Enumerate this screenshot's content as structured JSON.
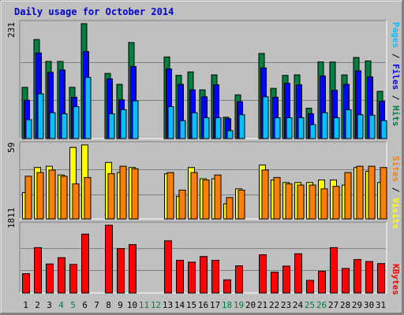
{
  "title": "Daily usage for October 2014",
  "colors": {
    "hits": "#008040",
    "files": "#0000FF",
    "pages": "#00C0FF",
    "visits": "#FFFF00",
    "sites": "#FF8000",
    "kbytes": "#FF0000",
    "weekend_label": "#008040",
    "weekday_label": "#000000"
  },
  "legend": {
    "pages": "Pages",
    "files": "Files",
    "hits": "Hits",
    "sites": "Sites",
    "visits": "Visits",
    "kbytes": "KBytes",
    "sep": " / "
  },
  "chart_data": [
    {
      "type": "bar",
      "ylabel": "231",
      "ylim": [
        0,
        231
      ],
      "categories": [
        "1",
        "2",
        "3",
        "4",
        "5",
        "6",
        "7",
        "8",
        "9",
        "10",
        "11",
        "12",
        "13",
        "14",
        "15",
        "16",
        "17",
        "18",
        "19",
        "20",
        "21",
        "22",
        "23",
        "24",
        "25",
        "26",
        "27",
        "28",
        "29",
        "30",
        "31"
      ],
      "weekend_days": [
        "4",
        "5",
        "11",
        "12",
        "18",
        "19",
        "25",
        "26"
      ],
      "series": [
        {
          "name": "Hits",
          "values": [
            103,
            199,
            155,
            155,
            103,
            231,
            0,
            131,
            109,
            193,
            0,
            0,
            164,
            127,
            134,
            98,
            128,
            43,
            88,
            0,
            171,
            101,
            127,
            128,
            61,
            154,
            154,
            128,
            163,
            156,
            95
          ]
        },
        {
          "name": "Files",
          "values": [
            77,
            172,
            133,
            138,
            83,
            175,
            0,
            120,
            78,
            145,
            0,
            0,
            140,
            109,
            98,
            84,
            108,
            40,
            74,
            0,
            142,
            83,
            111,
            108,
            50,
            126,
            97,
            109,
            136,
            124,
            75
          ]
        },
        {
          "name": "Pages",
          "values": [
            38,
            90,
            52,
            50,
            64,
            123,
            0,
            50,
            58,
            76,
            0,
            0,
            64,
            36,
            52,
            42,
            42,
            16,
            48,
            0,
            84,
            42,
            42,
            42,
            28,
            52,
            42,
            58,
            48,
            47,
            36
          ]
        }
      ]
    },
    {
      "type": "bar",
      "ylabel": "59",
      "ylim": [
        0,
        59
      ],
      "categories": [
        "1",
        "2",
        "3",
        "4",
        "5",
        "6",
        "7",
        "8",
        "9",
        "10",
        "11",
        "12",
        "13",
        "14",
        "15",
        "16",
        "17",
        "18",
        "19",
        "20",
        "21",
        "22",
        "23",
        "24",
        "25",
        "26",
        "27",
        "28",
        "29",
        "30",
        "31"
      ],
      "weekend_days": [
        "4",
        "5",
        "11",
        "12",
        "18",
        "19",
        "25",
        "26"
      ],
      "series": [
        {
          "name": "Visits",
          "values": [
            21,
            41,
            42,
            35,
            57,
            59,
            0,
            45,
            37,
            41,
            0,
            0,
            36,
            18,
            41,
            32,
            32,
            12,
            24,
            0,
            43,
            31,
            29,
            29,
            29,
            31,
            31,
            27,
            41,
            38,
            29
          ]
        },
        {
          "name": "Sites",
          "values": [
            34,
            37,
            39,
            34,
            28,
            33,
            0,
            36,
            42,
            40,
            0,
            0,
            37,
            23,
            37,
            31,
            35,
            17,
            23,
            0,
            39,
            33,
            28,
            27,
            27,
            24,
            26,
            37,
            42,
            42,
            41
          ]
        }
      ]
    },
    {
      "type": "bar",
      "ylabel": "1811",
      "ylim": [
        0,
        1811
      ],
      "categories": [
        "1",
        "2",
        "3",
        "4",
        "5",
        "6",
        "7",
        "8",
        "9",
        "10",
        "11",
        "12",
        "13",
        "14",
        "15",
        "16",
        "17",
        "18",
        "19",
        "20",
        "21",
        "22",
        "23",
        "24",
        "25",
        "26",
        "27",
        "28",
        "29",
        "30",
        "31"
      ],
      "weekend_days": [
        "4",
        "5",
        "11",
        "12",
        "18",
        "19",
        "25",
        "26"
      ],
      "series": [
        {
          "name": "KBytes",
          "values": [
            516,
            1212,
            775,
            944,
            763,
            1573,
            0,
            1811,
            1185,
            1294,
            0,
            0,
            1393,
            873,
            824,
            975,
            874,
            351,
            727,
            0,
            1022,
            556,
            719,
            1048,
            336,
            582,
            1213,
            655,
            893,
            841,
            785
          ]
        }
      ]
    }
  ]
}
